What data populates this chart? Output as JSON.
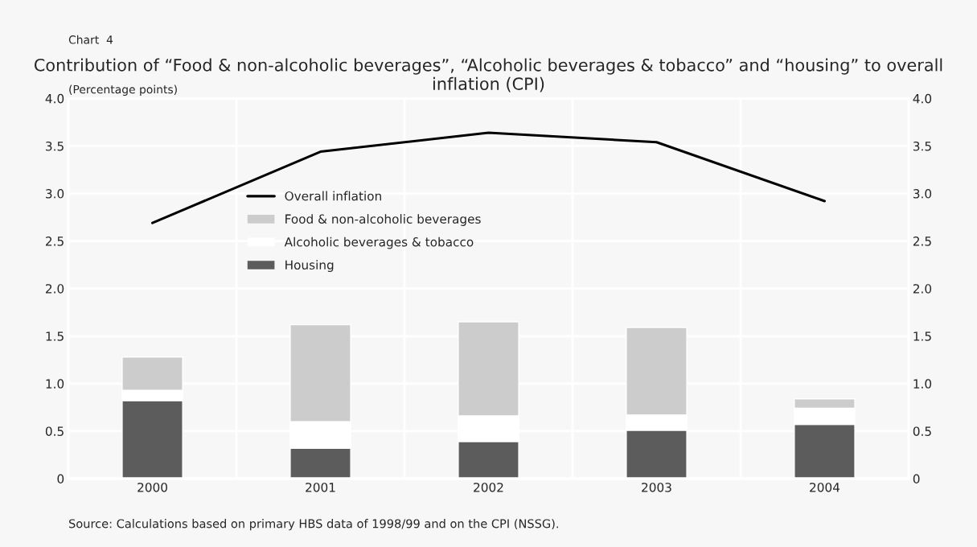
{
  "chart_data": {
    "type": "bar",
    "stacked": true,
    "title": "Contribution of “Food & non-alcoholic beverages”, “Alcoholic beverages & tobacco” and “housing” to overall inflation (CPI)",
    "ylabel": "(Percentage points)",
    "annotations": [
      "Chart  4",
      "Source: Calculations based on primary HBS data of 1998/99 and on the CPI (NSSG)."
    ],
    "categories": [
      "2000",
      "2001",
      "2002",
      "2003",
      "2004"
    ],
    "series": [
      {
        "name": "Housing",
        "color": "#5c5c5c",
        "values": [
          0.82,
          0.32,
          0.39,
          0.51,
          0.57
        ]
      },
      {
        "name": "Alcoholic beverages & tobacco",
        "color": "#ffffff",
        "values": [
          0.11,
          0.28,
          0.27,
          0.16,
          0.17
        ]
      },
      {
        "name": "Food & non-alcoholic beverages",
        "color": "#cccccc",
        "values": [
          0.35,
          1.02,
          0.99,
          0.92,
          0.1
        ]
      },
      {
        "name": "Overall inflation",
        "type": "line",
        "color": "#000000",
        "values": [
          2.69,
          3.44,
          3.64,
          3.54,
          2.92
        ]
      }
    ],
    "ylim": [
      0,
      4
    ],
    "yticks": [
      0,
      0.5,
      {
        "value": 1,
        "label": "1.0"
      },
      1.5,
      {
        "value": 2,
        "label": "2.0"
      },
      2.5,
      {
        "value": 3,
        "label": "3.0"
      },
      3.5,
      {
        "value": 4,
        "label": "4.0"
      }
    ],
    "y2lim": [
      0,
      4
    ],
    "y2ticks": [
      0,
      0.5,
      {
        "value": 1,
        "label": "1.0"
      },
      1.5,
      {
        "value": 2,
        "label": "2.0"
      },
      2.5,
      {
        "value": 3,
        "label": "3.0"
      },
      3.5,
      {
        "value": 4,
        "label": "4.0"
      }
    ],
    "grid": true,
    "legend": "center left",
    "marker": "none",
    "line_style": "solid"
  }
}
